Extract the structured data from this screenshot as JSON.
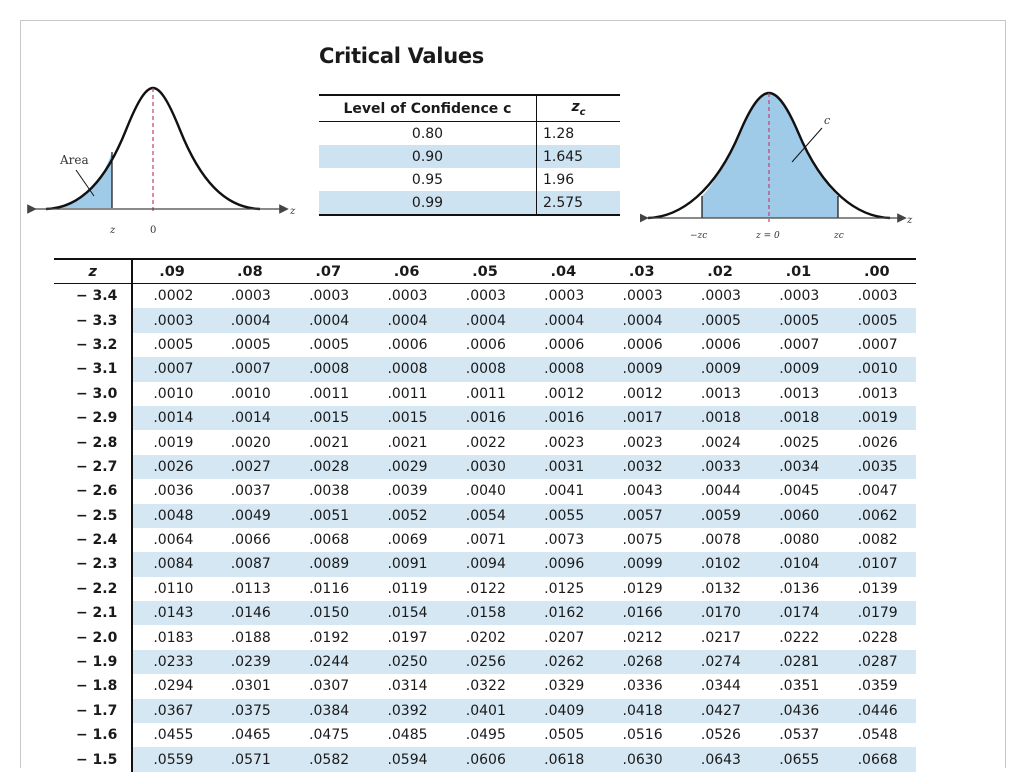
{
  "critical_values": {
    "title": "Critical Values",
    "header_confidence": "Level of Confidence c",
    "header_zc": "zc",
    "rows": [
      {
        "confidence": "0.80",
        "zc": "1.28"
      },
      {
        "confidence": "0.90",
        "zc": "1.645"
      },
      {
        "confidence": "0.95",
        "zc": "1.96"
      },
      {
        "confidence": "0.99",
        "zc": "2.575"
      }
    ]
  },
  "left_diagram": {
    "area_label": "Area",
    "z_label": "z",
    "zero_label": "0",
    "axis_label": "z"
  },
  "right_diagram": {
    "c_label": "c",
    "neg_zc_label": "−zc",
    "z0_label": "z = 0",
    "zc_label": "zc",
    "axis_label": "z"
  },
  "z_table": {
    "header_z": "z",
    "columns": [
      ".09",
      ".08",
      ".07",
      ".06",
      ".05",
      ".04",
      ".03",
      ".02",
      ".01",
      ".00"
    ],
    "rows": [
      {
        "z": "− 3.4",
        "values": [
          ".0002",
          ".0003",
          ".0003",
          ".0003",
          ".0003",
          ".0003",
          ".0003",
          ".0003",
          ".0003",
          ".0003"
        ]
      },
      {
        "z": "− 3.3",
        "values": [
          ".0003",
          ".0004",
          ".0004",
          ".0004",
          ".0004",
          ".0004",
          ".0004",
          ".0005",
          ".0005",
          ".0005"
        ]
      },
      {
        "z": "− 3.2",
        "values": [
          ".0005",
          ".0005",
          ".0005",
          ".0006",
          ".0006",
          ".0006",
          ".0006",
          ".0006",
          ".0007",
          ".0007"
        ]
      },
      {
        "z": "− 3.1",
        "values": [
          ".0007",
          ".0007",
          ".0008",
          ".0008",
          ".0008",
          ".0008",
          ".0009",
          ".0009",
          ".0009",
          ".0010"
        ]
      },
      {
        "z": "− 3.0",
        "values": [
          ".0010",
          ".0010",
          ".0011",
          ".0011",
          ".0011",
          ".0012",
          ".0012",
          ".0013",
          ".0013",
          ".0013"
        ]
      },
      {
        "z": "− 2.9",
        "values": [
          ".0014",
          ".0014",
          ".0015",
          ".0015",
          ".0016",
          ".0016",
          ".0017",
          ".0018",
          ".0018",
          ".0019"
        ]
      },
      {
        "z": "− 2.8",
        "values": [
          ".0019",
          ".0020",
          ".0021",
          ".0021",
          ".0022",
          ".0023",
          ".0023",
          ".0024",
          ".0025",
          ".0026"
        ]
      },
      {
        "z": "− 2.7",
        "values": [
          ".0026",
          ".0027",
          ".0028",
          ".0029",
          ".0030",
          ".0031",
          ".0032",
          ".0033",
          ".0034",
          ".0035"
        ]
      },
      {
        "z": "− 2.6",
        "values": [
          ".0036",
          ".0037",
          ".0038",
          ".0039",
          ".0040",
          ".0041",
          ".0043",
          ".0044",
          ".0045",
          ".0047"
        ]
      },
      {
        "z": "− 2.5",
        "values": [
          ".0048",
          ".0049",
          ".0051",
          ".0052",
          ".0054",
          ".0055",
          ".0057",
          ".0059",
          ".0060",
          ".0062"
        ]
      },
      {
        "z": "− 2.4",
        "values": [
          ".0064",
          ".0066",
          ".0068",
          ".0069",
          ".0071",
          ".0073",
          ".0075",
          ".0078",
          ".0080",
          ".0082"
        ]
      },
      {
        "z": "− 2.3",
        "values": [
          ".0084",
          ".0087",
          ".0089",
          ".0091",
          ".0094",
          ".0096",
          ".0099",
          ".0102",
          ".0104",
          ".0107"
        ]
      },
      {
        "z": "− 2.2",
        "values": [
          ".0110",
          ".0113",
          ".0116",
          ".0119",
          ".0122",
          ".0125",
          ".0129",
          ".0132",
          ".0136",
          ".0139"
        ]
      },
      {
        "z": "− 2.1",
        "values": [
          ".0143",
          ".0146",
          ".0150",
          ".0154",
          ".0158",
          ".0162",
          ".0166",
          ".0170",
          ".0174",
          ".0179"
        ]
      },
      {
        "z": "− 2.0",
        "values": [
          ".0183",
          ".0188",
          ".0192",
          ".0197",
          ".0202",
          ".0207",
          ".0212",
          ".0217",
          ".0222",
          ".0228"
        ]
      },
      {
        "z": "− 1.9",
        "values": [
          ".0233",
          ".0239",
          ".0244",
          ".0250",
          ".0256",
          ".0262",
          ".0268",
          ".0274",
          ".0281",
          ".0287"
        ]
      },
      {
        "z": "− 1.8",
        "values": [
          ".0294",
          ".0301",
          ".0307",
          ".0314",
          ".0322",
          ".0329",
          ".0336",
          ".0344",
          ".0351",
          ".0359"
        ]
      },
      {
        "z": "− 1.7",
        "values": [
          ".0367",
          ".0375",
          ".0384",
          ".0392",
          ".0401",
          ".0409",
          ".0418",
          ".0427",
          ".0436",
          ".0446"
        ]
      },
      {
        "z": "− 1.6",
        "values": [
          ".0455",
          ".0465",
          ".0475",
          ".0485",
          ".0495",
          ".0505",
          ".0516",
          ".0526",
          ".0537",
          ".0548"
        ]
      },
      {
        "z": "− 1.5",
        "values": [
          ".0559",
          ".0571",
          ".0582",
          ".0594",
          ".0606",
          ".0618",
          ".0630",
          ".0643",
          ".0655",
          ".0668"
        ]
      }
    ]
  }
}
